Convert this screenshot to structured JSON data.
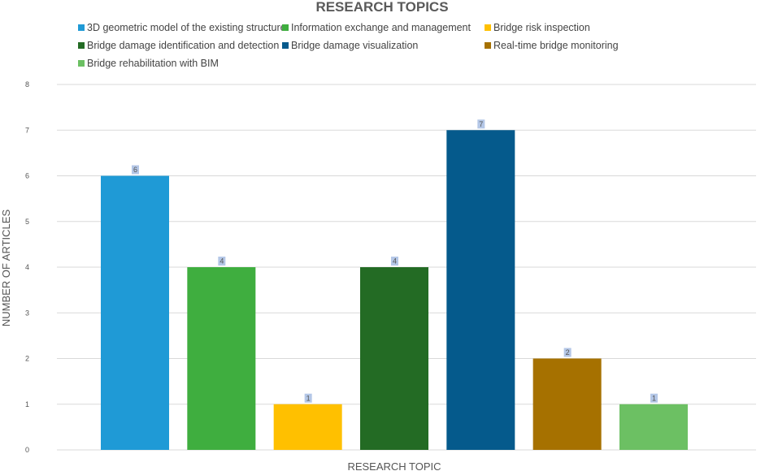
{
  "chart_data": {
    "type": "bar",
    "title": "RESEARCH TOPICS",
    "xlabel": "RESEARCH TOPIC",
    "ylabel": "NUMBER OF ARTICLES",
    "ylim": [
      0,
      8
    ],
    "yticks": [
      0,
      1,
      2,
      3,
      4,
      5,
      6,
      7,
      8
    ],
    "grid": true,
    "legend_position": "top",
    "categories": [
      "3D geometric model of the existing structure",
      "Information exchange and management",
      "Bridge risk inspection",
      "Bridge damage identification and detection",
      "Bridge damage visualization",
      "Real-time bridge monitoring",
      "Bridge rehabilitation with BIM"
    ],
    "values": [
      6,
      4,
      1,
      4,
      7,
      2,
      1
    ],
    "colors": [
      "#1f9ad6",
      "#3fae3f",
      "#ffc000",
      "#236b24",
      "#055a8c",
      "#a67100",
      "#6cc063"
    ],
    "data_labels": [
      "6",
      "4",
      "1",
      "4",
      "7",
      "2",
      "1"
    ]
  }
}
